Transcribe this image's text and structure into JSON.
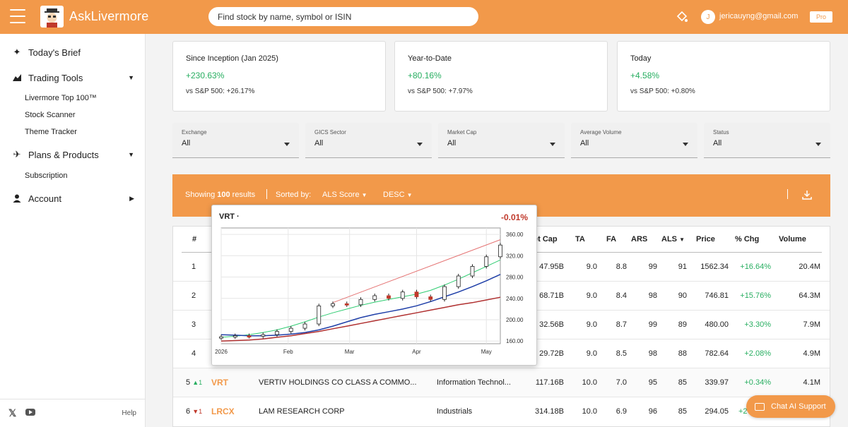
{
  "header": {
    "app_title": "AskLivermore",
    "search_placeholder": "Find stock by name, symbol or ISIN",
    "user_initial": "J",
    "user_email": "jericauyng@gmail.com",
    "plan_badge": "Pro",
    "brand_color": "#f2994a"
  },
  "sidebar": {
    "items": [
      {
        "label": "Today's Brief",
        "icon": "sparkle-icon"
      },
      {
        "label": "Trading Tools",
        "icon": "chart-icon",
        "arrow": "chevron-down-icon"
      },
      {
        "label": "Plans & Products",
        "icon": "plane-icon",
        "arrow": "chevron-down-icon"
      },
      {
        "label": "Account",
        "icon": "user-icon",
        "arrow": "chevron-right-icon"
      }
    ],
    "trading_tools_sub": [
      "Livermore Top 100™",
      "Stock Scanner",
      "Theme Tracker"
    ],
    "plans_sub": [
      "Subscription"
    ],
    "footer": {
      "x_label": "𝕏",
      "help": "Help"
    }
  },
  "performance": [
    {
      "label": "Since Inception (Jan 2025)",
      "value": "+230.63%",
      "benchmark": "vs S&P 500: +26.17%"
    },
    {
      "label": "Year-to-Date",
      "value": "+80.16%",
      "benchmark": "vs S&P 500: +7.97%"
    },
    {
      "label": "Today",
      "value": "+4.58%",
      "benchmark": "vs S&P 500: +0.80%"
    }
  ],
  "filters": [
    {
      "label": "Exchange",
      "value": "All"
    },
    {
      "label": "GICS Sector",
      "value": "All"
    },
    {
      "label": "Market Cap",
      "value": "All"
    },
    {
      "label": "Average Volume",
      "value": "All"
    },
    {
      "label": "Status",
      "value": "All"
    }
  ],
  "results_bar": {
    "showing_prefix": "Showing ",
    "count": "100",
    "showing_suffix": " results",
    "sorted_by_label": "Sorted by:",
    "sort_field": "ALS Score",
    "sort_order": "DESC"
  },
  "table": {
    "headers": {
      "rank": "#",
      "market_cap": "et Cap",
      "ta": "TA",
      "fa": "FA",
      "ars": "ARS",
      "als": "ALS",
      "price": "Price",
      "chg": "% Chg",
      "volume": "Volume"
    },
    "rows": [
      {
        "rank": "1",
        "market_cap": "47.95B",
        "ta": "9.0",
        "fa": "8.8",
        "ars": "99",
        "als": "91",
        "price": "1562.34",
        "chg": "+16.64%",
        "volume": "20.4M"
      },
      {
        "rank": "2",
        "market_cap": "68.71B",
        "ta": "9.0",
        "fa": "8.4",
        "ars": "98",
        "als": "90",
        "price": "746.81",
        "chg": "+15.76%",
        "volume": "64.3M"
      },
      {
        "rank": "3",
        "market_cap": "32.56B",
        "ta": "9.0",
        "fa": "8.7",
        "ars": "99",
        "als": "89",
        "price": "480.00",
        "chg": "+3.30%",
        "volume": "7.9M"
      },
      {
        "rank": "4",
        "market_cap": "29.72B",
        "ta": "9.0",
        "fa": "8.5",
        "ars": "98",
        "als": "88",
        "price": "782.64",
        "chg": "+2.08%",
        "volume": "4.9M"
      },
      {
        "rank": "5",
        "rank_change": "▲1",
        "symbol": "VRT",
        "name": "VERTIV HOLDINGS CO CLASS A COMMO...",
        "sector": "Information Technol...",
        "market_cap": "117.16B",
        "ta": "10.0",
        "fa": "7.0",
        "ars": "95",
        "als": "85",
        "price": "339.97",
        "chg": "+0.34%",
        "volume": "4.1M"
      },
      {
        "rank": "6",
        "rank_change": "▼1",
        "symbol": "LRCX",
        "name": "LAM RESEARCH CORP",
        "sector": "Industrials",
        "market_cap": "314.18B",
        "ta": "10.0",
        "fa": "6.9",
        "ars": "96",
        "als": "85",
        "price": "294.05",
        "chg": "+2",
        "volume": ""
      }
    ]
  },
  "chart_popup": {
    "ticker": "VRT ·",
    "change": "-0.01%"
  },
  "chart_data": {
    "type": "line",
    "x_ticks": [
      "2026",
      "Feb",
      "Mar",
      "Apr",
      "May"
    ],
    "y_ticks": [
      "360.00",
      "320.00",
      "280.00",
      "240.00",
      "200.00",
      "160.00"
    ],
    "ylim": [
      155,
      372
    ],
    "x": [
      0,
      5,
      10,
      15,
      20,
      25,
      30,
      35,
      40,
      45,
      50,
      55,
      60,
      65,
      70,
      75,
      80,
      85,
      90,
      95,
      100
    ],
    "series": [
      {
        "color": "#222222",
        "values": [
          168,
          170,
          169,
          172,
          178,
          184,
          192,
          226,
          230,
          228,
          238,
          245,
          240,
          252,
          243,
          238,
          262,
          282,
          300,
          318,
          340
        ]
      },
      {
        "color": "#2ecc71",
        "values": [
          167,
          169,
          172,
          176,
          181,
          188,
          196,
          205,
          213,
          220,
          227,
          233,
          238,
          243,
          248,
          255,
          265,
          276,
          288,
          300,
          312
        ]
      },
      {
        "color": "#1f3fa8",
        "values": [
          172,
          171,
          170,
          170,
          171,
          173,
          176,
          181,
          188,
          196,
          204,
          210,
          215,
          220,
          226,
          234,
          243,
          252,
          262,
          273,
          285
        ]
      },
      {
        "color": "#b03030",
        "values": [
          160,
          161,
          162,
          164,
          167,
          170,
          174,
          178,
          183,
          188,
          193,
          198,
          203,
          208,
          213,
          218,
          223,
          228,
          232,
          237,
          242
        ]
      }
    ]
  },
  "chat": {
    "label": "Chat AI Support"
  }
}
